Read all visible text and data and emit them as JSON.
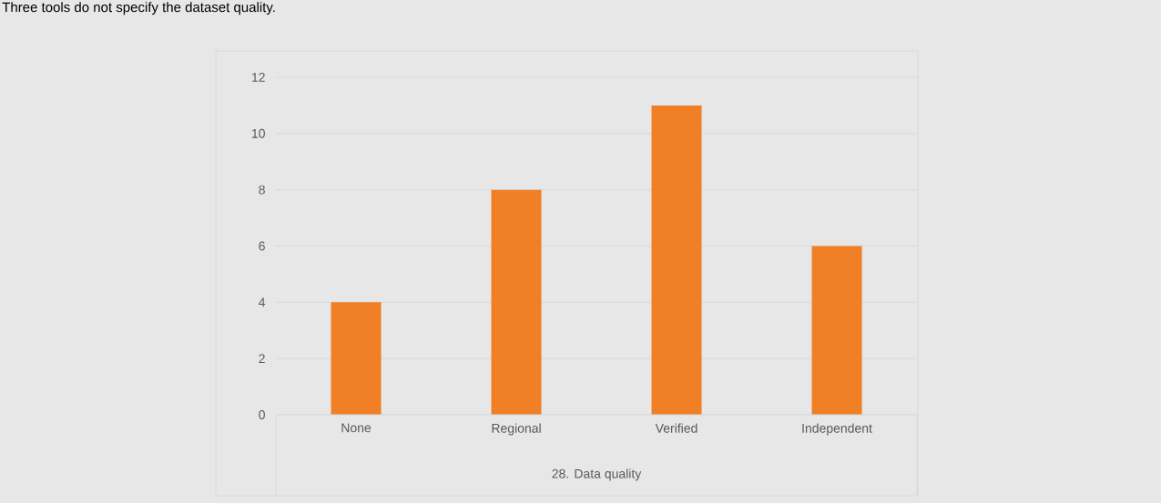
{
  "chart_data": {
    "type": "bar",
    "annotations": [
      "Three tools do not specify the dataset quality."
    ],
    "xlabel": "28. Data quality",
    "categories": [
      "None",
      "Regional",
      "Verified",
      "Independent"
    ],
    "values": [
      4,
      8,
      11,
      6
    ],
    "color": "#f07f26",
    "ylim": [
      0,
      12
    ],
    "yticks": [
      0,
      2,
      4,
      6,
      8,
      10,
      12
    ],
    "grid": "y"
  }
}
